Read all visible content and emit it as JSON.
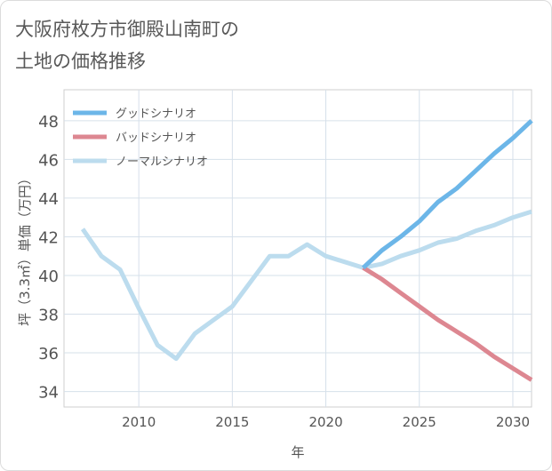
{
  "title": {
    "line1": "大阪府枚方市御殿山南町の",
    "line2": "土地の価格推移"
  },
  "chart_data": {
    "type": "line",
    "xlabel": "年",
    "ylabel": "坪（3.3㎡）単価（万円）",
    "xlim": [
      2006,
      2031
    ],
    "ylim": [
      33.2,
      49.6
    ],
    "xticks": [
      2010,
      2015,
      2020,
      2025,
      2030
    ],
    "yticks": [
      34,
      36,
      38,
      40,
      42,
      44,
      46,
      48
    ],
    "grid": true,
    "legend_position": "top-left",
    "series": [
      {
        "name": "グッドシナリオ",
        "color": "#6cb6e8",
        "x": [
          2022,
          2023,
          2024,
          2025,
          2026,
          2027,
          2028,
          2029,
          2030,
          2031
        ],
        "y": [
          40.4,
          41.3,
          42.0,
          42.8,
          43.8,
          44.5,
          45.4,
          46.3,
          47.1,
          48.0
        ]
      },
      {
        "name": "バッドシナリオ",
        "color": "#dd8791",
        "x": [
          2022,
          2023,
          2024,
          2025,
          2026,
          2027,
          2028,
          2029,
          2030,
          2031
        ],
        "y": [
          40.4,
          39.8,
          39.1,
          38.4,
          37.7,
          37.1,
          36.5,
          35.8,
          35.2,
          34.6
        ]
      },
      {
        "name": "ノーマルシナリオ",
        "color": "#bcdcee",
        "x": [
          2007,
          2008,
          2009,
          2010,
          2011,
          2012,
          2013,
          2014,
          2015,
          2016,
          2017,
          2018,
          2019,
          2020,
          2021,
          2022,
          2023,
          2024,
          2025,
          2026,
          2027,
          2028,
          2029,
          2030,
          2031
        ],
        "y": [
          42.4,
          41.0,
          40.3,
          38.3,
          36.4,
          35.7,
          37.0,
          37.7,
          38.4,
          39.7,
          41.0,
          41.0,
          41.6,
          41.0,
          40.7,
          40.4,
          40.6,
          41.0,
          41.3,
          41.7,
          41.9,
          42.3,
          42.6,
          43.0,
          43.3
        ]
      }
    ]
  }
}
